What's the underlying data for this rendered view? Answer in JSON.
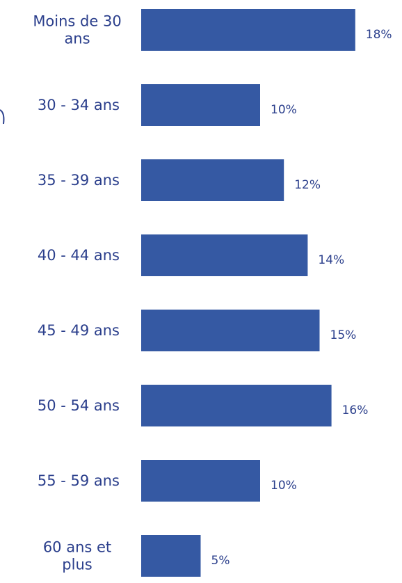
{
  "chart_data": {
    "type": "bar",
    "orientation": "horizontal",
    "categories": [
      [
        "Moins de 30",
        "ans"
      ],
      [
        "30 - 34 ans"
      ],
      [
        "35 - 39 ans"
      ],
      [
        "40 - 44 ans"
      ],
      [
        "45 - 49 ans"
      ],
      [
        "50 - 54 ans"
      ],
      [
        "55 - 59 ans"
      ],
      [
        "60 ans et",
        "plus"
      ]
    ],
    "values": [
      18,
      10,
      12,
      14,
      15,
      16,
      10,
      5
    ],
    "value_labels": [
      "18%",
      "10%",
      "12%",
      "14%",
      "15%",
      "16%",
      "10%",
      "5%"
    ],
    "title": "",
    "xlabel": "",
    "ylabel": "",
    "unit": "%",
    "grid": false,
    "legend": "none",
    "colors": {
      "bar": "#3559a3",
      "text": "#2b3f8c"
    }
  }
}
